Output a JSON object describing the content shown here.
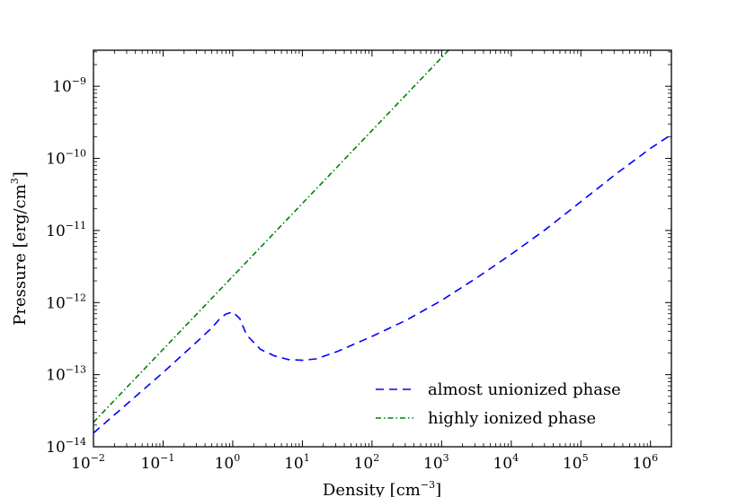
{
  "chart_data": {
    "type": "line",
    "title": "",
    "xlabel": "Density [cm",
    "xlabel_exp": "−3",
    "xlabel_suffix": "]",
    "ylabel": "Pressure [erg/cm",
    "ylabel_exp": "3",
    "ylabel_suffix": "]",
    "xscale": "log",
    "yscale": "log",
    "xlim_log10": [
      -2,
      6.3
    ],
    "ylim_log10": [
      -14,
      -8.5
    ],
    "x_ticks": [
      {
        "base": "10",
        "exp": "−2",
        "log": -2
      },
      {
        "base": "10",
        "exp": "−1",
        "log": -1
      },
      {
        "base": "10",
        "exp": "0",
        "log": 0
      },
      {
        "base": "10",
        "exp": "1",
        "log": 1
      },
      {
        "base": "10",
        "exp": "2",
        "log": 2
      },
      {
        "base": "10",
        "exp": "3",
        "log": 3
      },
      {
        "base": "10",
        "exp": "4",
        "log": 4
      },
      {
        "base": "10",
        "exp": "5",
        "log": 5
      },
      {
        "base": "10",
        "exp": "6",
        "log": 6
      }
    ],
    "y_ticks": [
      {
        "base": "10",
        "exp": "−14",
        "log": -14
      },
      {
        "base": "10",
        "exp": "−13",
        "log": -13
      },
      {
        "base": "10",
        "exp": "−12",
        "log": -12
      },
      {
        "base": "10",
        "exp": "−11",
        "log": -11
      },
      {
        "base": "10",
        "exp": "−10",
        "log": -10
      },
      {
        "base": "10",
        "exp": "−9",
        "log": -9
      }
    ],
    "legend_position": "lower-right",
    "series": [
      {
        "name": "almost unionized phase",
        "color": "#0000ff",
        "style": "dashed",
        "log_x": [
          -2.0,
          -1.5,
          -1.0,
          -0.5,
          -0.3,
          -0.2,
          -0.1,
          0.0,
          0.1,
          0.2,
          0.4,
          0.6,
          0.8,
          1.0,
          1.2,
          1.5,
          2.0,
          2.5,
          3.0,
          3.5,
          4.0,
          4.5,
          5.0,
          5.5,
          6.0,
          6.3
        ],
        "log_y": [
          -13.81,
          -13.39,
          -12.97,
          -12.53,
          -12.35,
          -12.24,
          -12.16,
          -12.13,
          -12.22,
          -12.45,
          -12.65,
          -12.74,
          -12.79,
          -12.8,
          -12.78,
          -12.68,
          -12.47,
          -12.24,
          -11.97,
          -11.66,
          -11.33,
          -10.98,
          -10.6,
          -10.22,
          -9.86,
          -9.67
        ]
      },
      {
        "name": "highly ionized phase",
        "color": "#008000",
        "style": "dashdot",
        "log_x": [
          -2.0,
          3.1
        ],
        "log_y": [
          -13.66,
          -8.5
        ]
      }
    ]
  }
}
